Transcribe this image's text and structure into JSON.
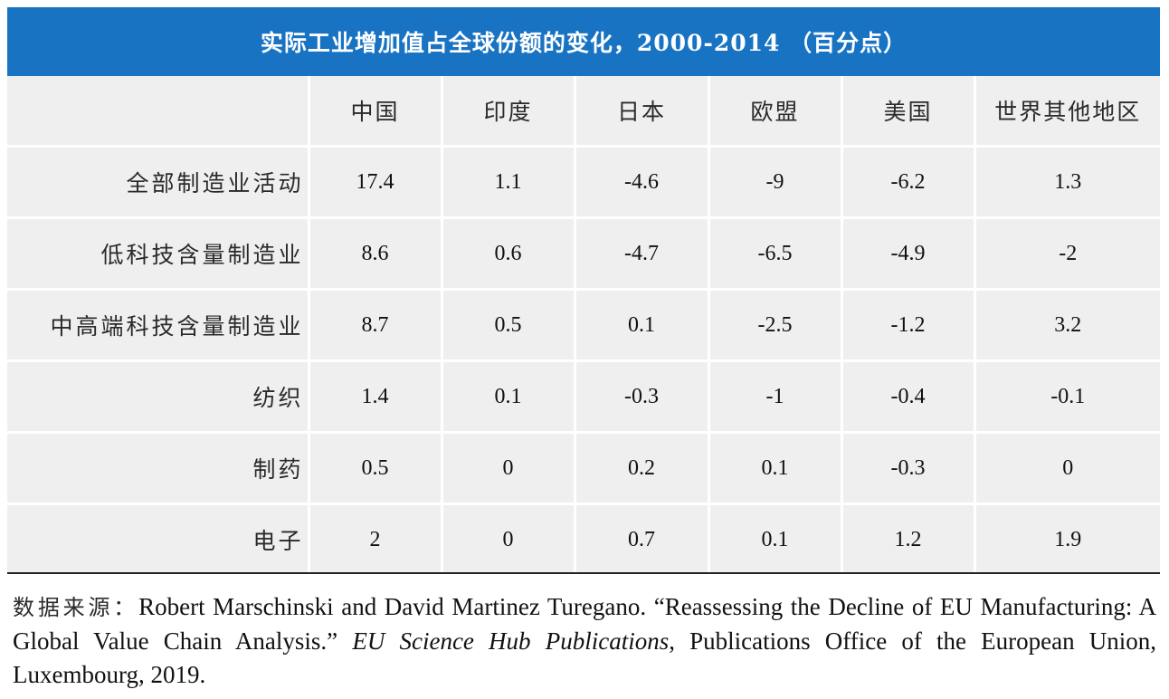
{
  "title": "实际工业增加值占全球份额的变化，2000-2014 （百分点）",
  "table": {
    "columns": [
      "中国",
      "印度",
      "日本",
      "欧盟",
      "美国",
      "世界其他地区"
    ],
    "rows": [
      {
        "label": "全部制造业活动",
        "values": [
          "17.4",
          "1.1",
          "-4.6",
          "-9",
          "-6.2",
          "1.3"
        ]
      },
      {
        "label": "低科技含量制造业",
        "values": [
          "8.6",
          "0.6",
          "-4.7",
          "-6.5",
          "-4.9",
          "-2"
        ]
      },
      {
        "label": "中高端科技含量制造业",
        "values": [
          "8.7",
          "0.5",
          "0.1",
          "-2.5",
          "-1.2",
          "3.2"
        ]
      },
      {
        "label": "纺织",
        "values": [
          "1.4",
          "0.1",
          "-0.3",
          "-1",
          "-0.4",
          "-0.1"
        ]
      },
      {
        "label": "制药",
        "values": [
          "0.5",
          "0",
          "0.2",
          "0.1",
          "-0.3",
          "0"
        ]
      },
      {
        "label": "电子",
        "values": [
          "2",
          "0",
          "0.7",
          "0.1",
          "1.2",
          "1.9"
        ]
      }
    ]
  },
  "source": {
    "label": "数据来源：",
    "text_before": "Robert Marschinski and David Martinez Turegano. “Reassessing the Decline of EU Manufacturing: A Global Value Chain Analysis.” ",
    "publication": "EU Science Hub Publications",
    "text_after": ", Publications Office of the European Union, Luxembourg, 2019."
  },
  "colors": {
    "title_bar": "#1873c3",
    "cell_background": "#efefef",
    "cell_border": "#ffffff",
    "rule": "#222222"
  }
}
